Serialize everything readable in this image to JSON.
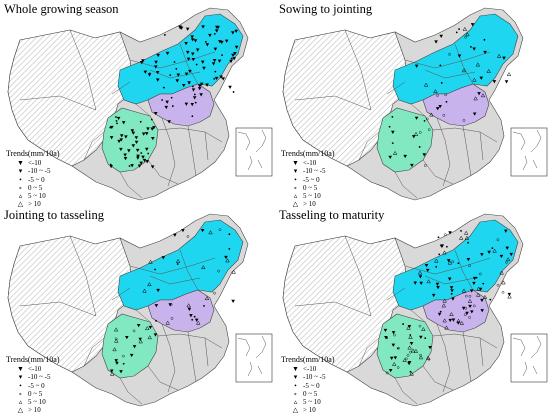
{
  "panels": [
    {
      "title": "Whole  growing  season",
      "dots": {
        "north": 90,
        "center": 12,
        "south": 45
      }
    },
    {
      "title": "Sowing to jointing",
      "dots": {
        "north": 35,
        "center": 8,
        "south": 18
      }
    },
    {
      "title": "Jointing to tasseling",
      "dots": {
        "north": 28,
        "center": 14,
        "south": 22
      }
    },
    {
      "title": "Tasseling to maturity",
      "dots": {
        "north": 75,
        "center": 20,
        "south": 40
      }
    }
  ],
  "legend": {
    "title": "Trends(mm/10a)",
    "items": [
      {
        "icon": "filled-down-triangle-icon",
        "glyph": "▼",
        "label": "<-10"
      },
      {
        "icon": "small-filled-down-triangle-icon",
        "glyph": "▾",
        "label": "-10 ~ -5"
      },
      {
        "icon": "dot-icon",
        "glyph": "•",
        "label": "-5 ~ 0"
      },
      {
        "icon": "open-dot-icon",
        "glyph": "∘",
        "label": "0 ~ 5"
      },
      {
        "icon": "small-open-up-triangle-icon",
        "glyph": "▵",
        "label": "5 ~ 10"
      },
      {
        "icon": "open-up-triangle-icon",
        "glyph": "△",
        "label": "> 10"
      }
    ]
  },
  "colors": {
    "northeast": "#1ed6f0",
    "huanghuaihai": "#c9b3ec",
    "southwest": "#82e8c2",
    "other_provinces": "#d9d9d9",
    "hatched": "#bfbfbf",
    "border": "#555555"
  }
}
